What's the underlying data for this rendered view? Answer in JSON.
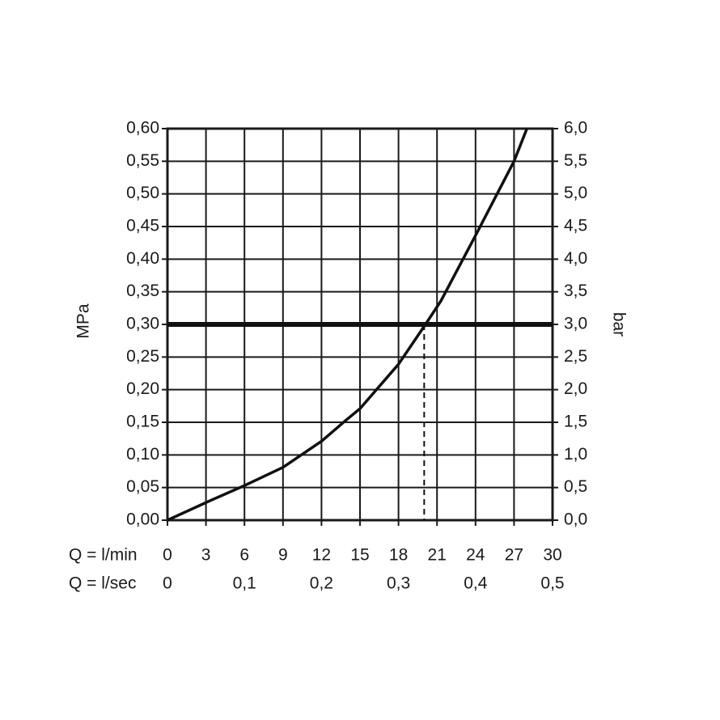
{
  "chart_data": {
    "type": "line",
    "xlabel": "Q = l/min",
    "x2label": "Q = l/sec",
    "ylabel": "MPa",
    "y2label": "bar",
    "x": [
      0,
      3,
      6,
      9,
      12,
      13.9,
      15,
      18,
      20.1,
      21.3,
      24.1,
      27,
      28
    ],
    "series": [
      {
        "color": "#111111",
        "values": [
          0,
          0.027,
          0.053,
          0.081,
          0.121,
          0.153,
          0.171,
          0.239,
          0.3,
          0.336,
          0.44,
          0.55,
          0.6
        ]
      }
    ],
    "xlim": [
      0,
      30
    ],
    "xticks": [
      0,
      3,
      6,
      9,
      12,
      15,
      18,
      21,
      24,
      27,
      30
    ],
    "x2lim": [
      0,
      0.5
    ],
    "x2ticks": [
      0,
      {
        "value": 0.1,
        "label": "0,1"
      },
      {
        "value": 0.2,
        "label": "0,2"
      },
      {
        "value": 0.3,
        "label": "0,3"
      },
      {
        "value": 0.4,
        "label": "0,4"
      },
      {
        "value": 0.5,
        "label": "0,5"
      }
    ],
    "ylim": [
      0,
      0.6
    ],
    "yticks": [
      {
        "value": 0,
        "label": "0,00"
      },
      {
        "value": 0.05,
        "label": "0,05"
      },
      {
        "value": 0.1,
        "label": "0,10"
      },
      {
        "value": 0.15,
        "label": "0,15"
      },
      {
        "value": 0.2,
        "label": "0,20"
      },
      {
        "value": 0.25,
        "label": "0,25"
      },
      {
        "value": 0.3,
        "label": "0,30"
      },
      {
        "value": 0.35,
        "label": "0,35"
      },
      {
        "value": 0.4,
        "label": "0,40"
      },
      {
        "value": 0.45,
        "label": "0,45"
      },
      {
        "value": 0.5,
        "label": "0,50"
      },
      {
        "value": 0.55,
        "label": "0,55"
      },
      {
        "value": 0.6,
        "label": "0,60"
      }
    ],
    "y2lim": [
      0,
      6
    ],
    "y2ticks": [
      {
        "value": 0,
        "label": "0,0"
      },
      {
        "value": 0.5,
        "label": "0,5"
      },
      {
        "value": 1,
        "label": "1,0"
      },
      {
        "value": 1.5,
        "label": "1,5"
      },
      {
        "value": 2,
        "label": "2,0"
      },
      {
        "value": 2.5,
        "label": "2,5"
      },
      {
        "value": 3,
        "label": "3,0"
      },
      {
        "value": 3.5,
        "label": "3,5"
      },
      {
        "value": 4,
        "label": "4,0"
      },
      {
        "value": 4.5,
        "label": "4,5"
      },
      {
        "value": 5,
        "label": "5,0"
      },
      {
        "value": 5.5,
        "label": "5,5"
      },
      {
        "value": 6,
        "label": "6,0"
      }
    ],
    "grid": true,
    "hline": 0.3,
    "vline": 20
  }
}
